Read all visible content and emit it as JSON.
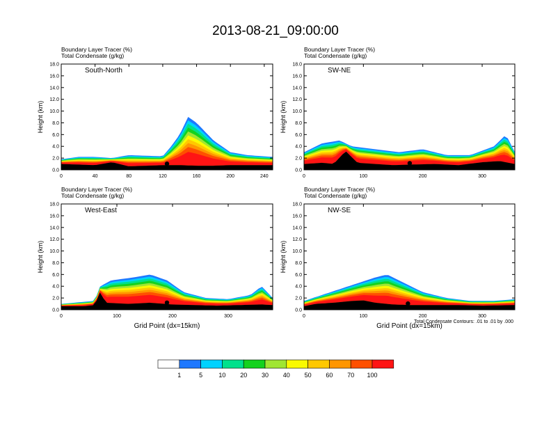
{
  "title": "2013-08-21_09:00:00",
  "colors": {
    "scale": [
      "#ffffff",
      "#1e78ff",
      "#00d2ff",
      "#00e18c",
      "#14d21e",
      "#a0e632",
      "#fafa00",
      "#ffc800",
      "#ff9600",
      "#ff5000",
      "#ff1414"
    ],
    "contour": "#000000",
    "background": "#ffffff"
  },
  "colorbar": {
    "labels": [
      "1",
      "5",
      "10",
      "20",
      "30",
      "40",
      "50",
      "60",
      "70",
      "100"
    ]
  },
  "footnote": "Total Condensate Contours: .01 to .01 by .000",
  "chart_data": [
    {
      "type": "heatmap",
      "panel": "South-North",
      "header_line1": "Boundary Layer Tracer   (%)",
      "header_line2": "Total Condensate   (g/kg)",
      "xlabel": "",
      "ylabel": "Height (km)",
      "xlim": [
        0,
        250
      ],
      "ylim": [
        0,
        18
      ],
      "xticks": [
        "0",
        "40",
        "80",
        "120",
        "160",
        "200",
        "240"
      ],
      "yticks": [
        "0.0",
        "2.0",
        "4.0",
        "6.0",
        "8.0",
        "10.0",
        "12.0",
        "14.0",
        "16.0",
        "18.0"
      ],
      "terrain": [
        [
          0,
          1.0
        ],
        [
          20,
          0.9
        ],
        [
          40,
          0.8
        ],
        [
          60,
          1.3
        ],
        [
          80,
          0.6
        ],
        [
          100,
          0.7
        ],
        [
          120,
          0.8
        ],
        [
          140,
          0.8
        ],
        [
          160,
          0.7
        ],
        [
          180,
          0.7
        ],
        [
          200,
          0.8
        ],
        [
          220,
          0.8
        ],
        [
          250,
          0.8
        ]
      ],
      "tracer_top": [
        [
          0,
          1.8
        ],
        [
          20,
          2.2
        ],
        [
          40,
          2.2
        ],
        [
          60,
          2.0
        ],
        [
          80,
          2.5
        ],
        [
          100,
          2.4
        ],
        [
          120,
          2.3
        ],
        [
          130,
          4
        ],
        [
          140,
          6
        ],
        [
          150,
          9
        ],
        [
          160,
          8
        ],
        [
          180,
          5
        ],
        [
          200,
          3
        ],
        [
          220,
          2.5
        ],
        [
          250,
          2.2
        ]
      ],
      "marker_x": 125
    },
    {
      "type": "heatmap",
      "panel": "SW-NE",
      "header_line1": "Boundary Layer Tracer   (%)",
      "header_line2": "Total Condensate   (g/kg)",
      "xlabel": "",
      "ylabel": "Height (km)",
      "xlim": [
        0,
        355
      ],
      "ylim": [
        0,
        18
      ],
      "xticks": [
        "0",
        "100",
        "200",
        "300"
      ],
      "yticks": [
        "0.0",
        "2.0",
        "4.0",
        "6.0",
        "8.0",
        "10.0",
        "12.0",
        "14.0",
        "16.0",
        "18.0"
      ],
      "terrain": [
        [
          0,
          1.0
        ],
        [
          30,
          1.2
        ],
        [
          50,
          1.0
        ],
        [
          70,
          3.2
        ],
        [
          90,
          1.2
        ],
        [
          120,
          1.0
        ],
        [
          150,
          0.8
        ],
        [
          180,
          0.9
        ],
        [
          220,
          1.0
        ],
        [
          260,
          0.8
        ],
        [
          300,
          1.3
        ],
        [
          330,
          1.5
        ],
        [
          355,
          1.0
        ]
      ],
      "tracer_top": [
        [
          0,
          3
        ],
        [
          30,
          4.5
        ],
        [
          60,
          5
        ],
        [
          80,
          4
        ],
        [
          120,
          3.5
        ],
        [
          160,
          3
        ],
        [
          200,
          3.5
        ],
        [
          240,
          2.5
        ],
        [
          280,
          2.5
        ],
        [
          320,
          4
        ],
        [
          340,
          6
        ],
        [
          355,
          3
        ]
      ],
      "marker_x": 178
    },
    {
      "type": "heatmap",
      "panel": "West-East",
      "header_line1": "Boundary Layer Tracer   (%)",
      "header_line2": "Total Condensate   (g/kg)",
      "xlabel": "Grid Point (dx=15km)",
      "ylabel": "Height (km)",
      "xlim": [
        0,
        380
      ],
      "ylim": [
        0,
        18
      ],
      "xticks": [
        "0",
        "100",
        "200",
        "300"
      ],
      "yticks": [
        "0.0",
        "2.0",
        "4.0",
        "6.0",
        "8.0",
        "10.0",
        "12.0",
        "14.0",
        "16.0",
        "18.0"
      ],
      "terrain": [
        [
          0,
          0.6
        ],
        [
          40,
          0.6
        ],
        [
          60,
          0.8
        ],
        [
          70,
          3.0
        ],
        [
          80,
          1.2
        ],
        [
          120,
          1.0
        ],
        [
          160,
          1.2
        ],
        [
          200,
          0.9
        ],
        [
          240,
          0.8
        ],
        [
          280,
          0.7
        ],
        [
          320,
          0.8
        ],
        [
          360,
          0.9
        ],
        [
          380,
          0.8
        ]
      ],
      "tracer_top": [
        [
          0,
          1
        ],
        [
          60,
          1.5
        ],
        [
          70,
          4
        ],
        [
          90,
          5
        ],
        [
          130,
          5.5
        ],
        [
          160,
          6
        ],
        [
          190,
          5
        ],
        [
          220,
          3
        ],
        [
          260,
          2
        ],
        [
          300,
          1.8
        ],
        [
          340,
          2.5
        ],
        [
          360,
          4
        ],
        [
          380,
          2
        ]
      ],
      "marker_x": 190
    },
    {
      "type": "heatmap",
      "panel": "NW-SE",
      "header_line1": "Boundary Layer Tracer   (%)",
      "header_line2": "Total Condensate   (g/kg)",
      "xlabel": "Grid Point (dx=15km)",
      "ylabel": "Height (km)",
      "xlim": [
        0,
        355
      ],
      "ylim": [
        0,
        18
      ],
      "xticks": [
        "0",
        "100",
        "200",
        "300"
      ],
      "yticks": [
        "0.0",
        "2.0",
        "4.0",
        "6.0",
        "8.0",
        "10.0",
        "12.0",
        "14.0",
        "16.0",
        "18.0"
      ],
      "terrain": [
        [
          0,
          0.6
        ],
        [
          20,
          1.0
        ],
        [
          50,
          1.2
        ],
        [
          80,
          1.5
        ],
        [
          100,
          1.6
        ],
        [
          120,
          1.2
        ],
        [
          150,
          0.9
        ],
        [
          180,
          0.8
        ],
        [
          220,
          0.8
        ],
        [
          260,
          0.8
        ],
        [
          300,
          0.7
        ],
        [
          355,
          0.8
        ]
      ],
      "tracer_top": [
        [
          0,
          1.5
        ],
        [
          30,
          2.5
        ],
        [
          60,
          3.5
        ],
        [
          90,
          4.5
        ],
        [
          120,
          5.5
        ],
        [
          140,
          6
        ],
        [
          160,
          5
        ],
        [
          200,
          3
        ],
        [
          240,
          2
        ],
        [
          280,
          1.5
        ],
        [
          320,
          1.5
        ],
        [
          355,
          1.8
        ]
      ],
      "marker_x": 175
    }
  ]
}
